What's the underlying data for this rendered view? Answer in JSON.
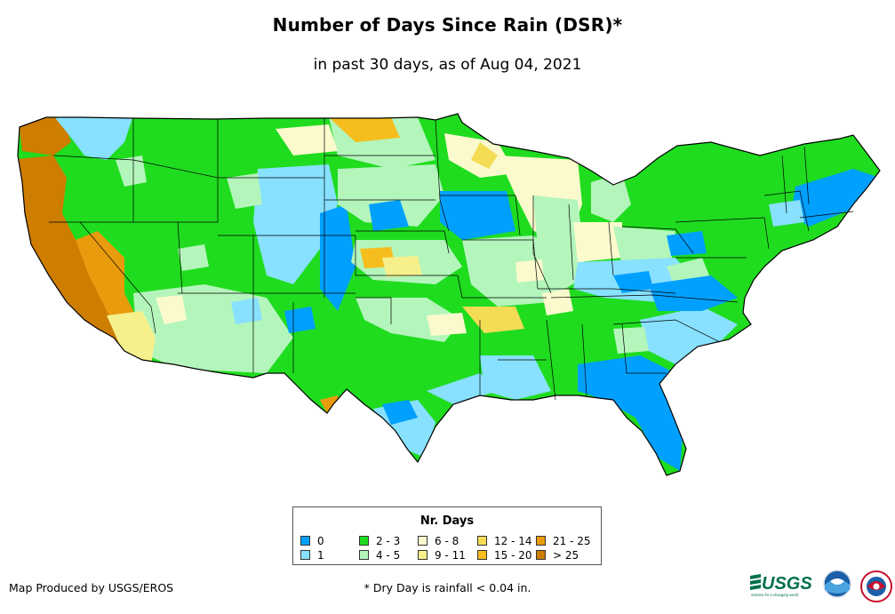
{
  "title": "Number of Days Since Rain (DSR)*",
  "subtitle": "in past 30 days, as of Aug 04, 2021",
  "legend": {
    "title": "Nr. Days",
    "items": [
      {
        "label": "0",
        "color": "#00a0ff"
      },
      {
        "label": "1",
        "color": "#87e1ff"
      },
      {
        "label": "2 - 3",
        "color": "#1fdc1f"
      },
      {
        "label": "4 - 5",
        "color": "#b4f5bc"
      },
      {
        "label": "6 - 8",
        "color": "#fafacd"
      },
      {
        "label": "9 - 11",
        "color": "#f6f08c"
      },
      {
        "label": "12 - 14",
        "color": "#f5dc55"
      },
      {
        "label": "15 - 20",
        "color": "#f5be1e"
      },
      {
        "label": "21 - 25",
        "color": "#e89b0c"
      },
      {
        "label": "> 25",
        "color": "#cd7d00"
      }
    ]
  },
  "credit": "Map Produced by USGS/EROS",
  "footnote": "* Dry Day is rainfall < 0.04 in.",
  "logos": {
    "usgs": "USGS",
    "usgs_tagline": "science for a changing world",
    "noaa_icon": "noaa-logo-icon",
    "nws_icon": "nws-logo-icon"
  }
}
